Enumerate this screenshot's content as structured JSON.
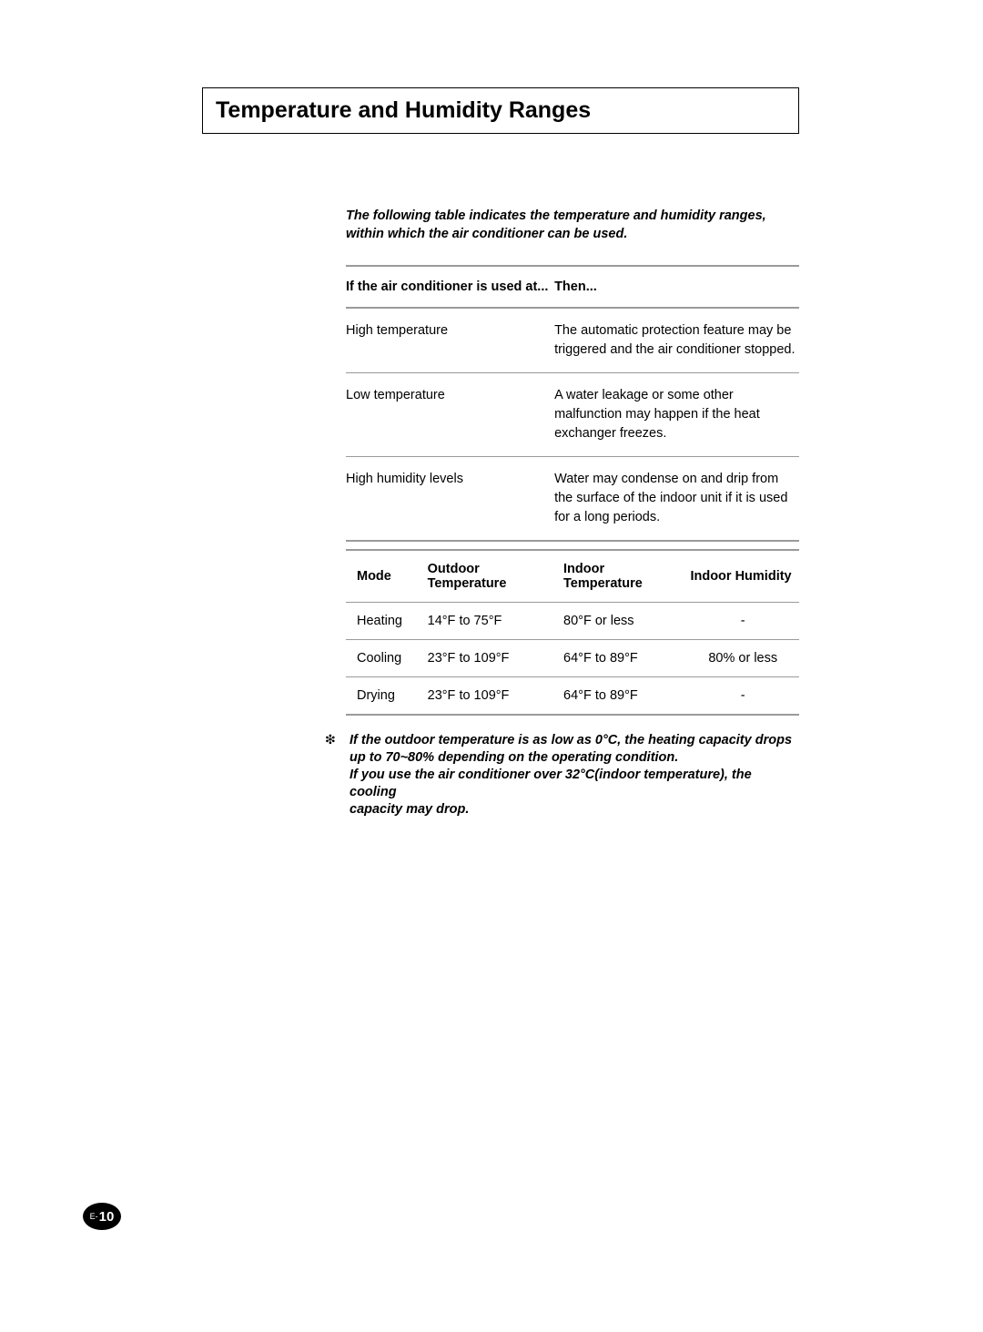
{
  "title": "Temperature and Humidity Ranges",
  "intro_line1": "The following table indicates the temperature and humidity ranges,",
  "intro_line2": "within which the air conditioner can be used.",
  "conditions_table": {
    "type": "table",
    "columns": [
      "If the air conditioner is used at...",
      "Then..."
    ],
    "rows": [
      [
        "High temperature",
        "The automatic protection feature may be triggered and the air conditioner stopped."
      ],
      [
        "Low temperature",
        "A water leakage or some other malfunction may happen if the heat exchanger freezes."
      ],
      [
        "High humidity levels",
        "Water may condense on and drip from the surface of the indoor unit if it is used for a long periods."
      ]
    ],
    "header_border_color": "#9a9a9a",
    "row_border_color": "#9a9a9a",
    "font_size_pt": 11
  },
  "modes_table": {
    "type": "table",
    "columns": [
      "Mode",
      "Outdoor Temperature",
      "Indoor Temperature",
      "Indoor Humidity"
    ],
    "rows": [
      [
        "Heating",
        "14°F to 75°F",
        "80°F or less",
        "-"
      ],
      [
        "Cooling",
        "23°F to 109°F",
        "64°F to 89°F",
        "80% or less"
      ],
      [
        "Drying",
        "23°F to 109°F",
        "64°F to 89°F",
        "-"
      ]
    ],
    "header_border_color": "#9a9a9a",
    "row_border_color": "#9a9a9a",
    "font_size_pt": 11
  },
  "footnote_marker": "❇",
  "footnote_line1": "If the outdoor temperature is as low as 0°C, the heating capacity drops",
  "footnote_line2": "up to 70~80% depending on the operating condition.",
  "footnote_line3": "If you use the air conditioner over 32°C(indoor temperature), the cooling",
  "footnote_line4": "capacity may drop.",
  "page_prefix": "E-",
  "page_number": "10",
  "colors": {
    "background": "#ffffff",
    "text": "#000000",
    "rule": "#9a9a9a",
    "badge_bg": "#000000",
    "badge_text": "#ffffff"
  },
  "typography": {
    "title_fontsize_pt": 19,
    "body_fontsize_pt": 11,
    "font_family": "Arial"
  }
}
